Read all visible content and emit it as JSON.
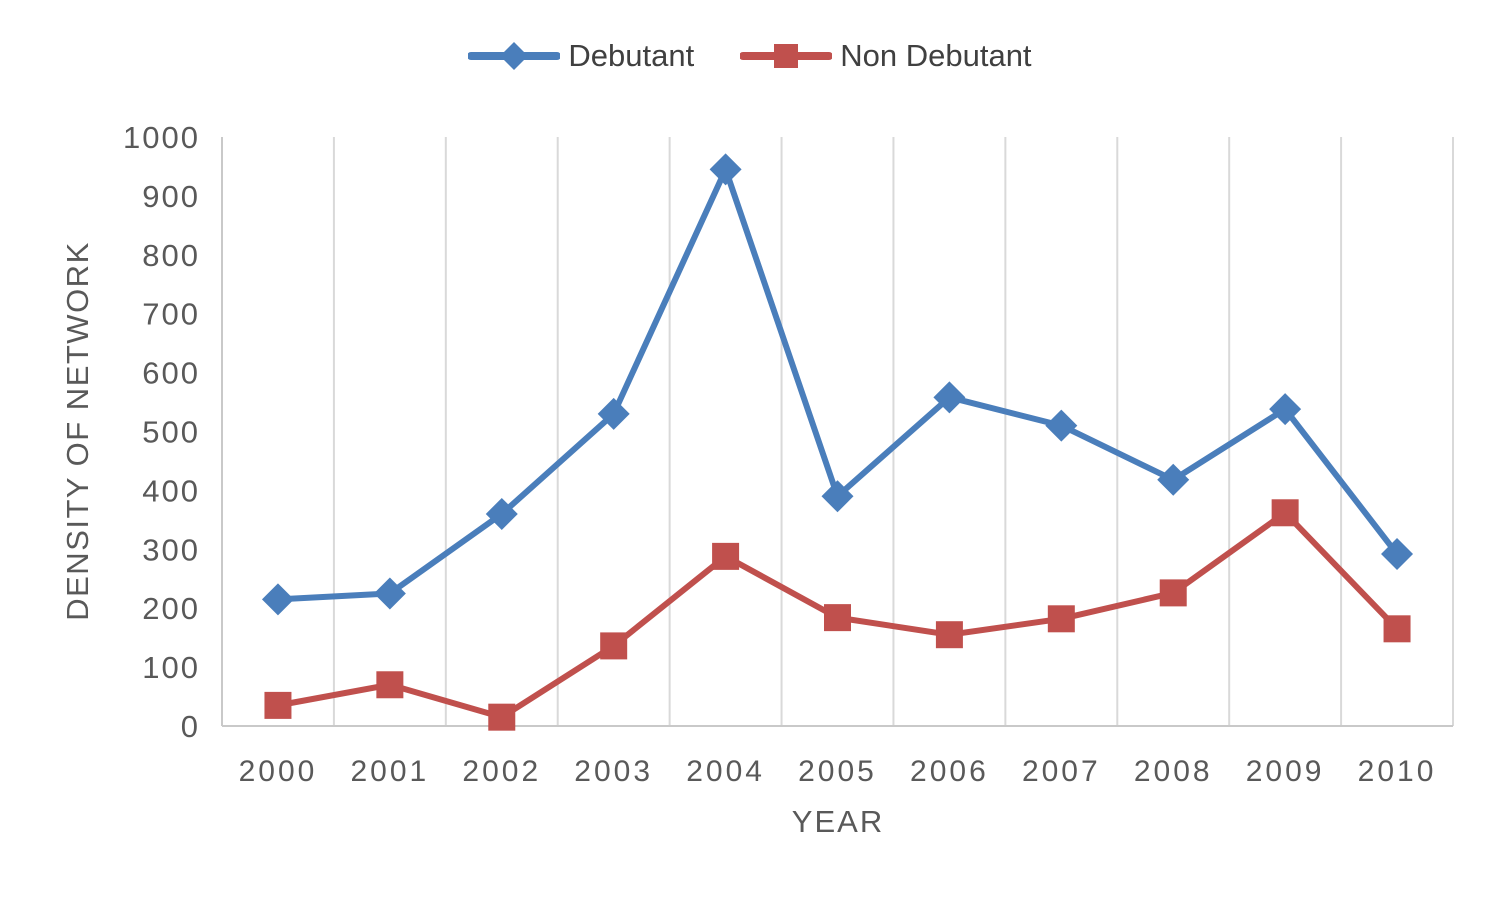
{
  "chart_data": {
    "type": "line",
    "title": "",
    "xlabel": "YEAR",
    "ylabel": "DENSITY OF NETWORK",
    "categories": [
      "2000",
      "2001",
      "2002",
      "2003",
      "2004",
      "2005",
      "2006",
      "2007",
      "2008",
      "2009",
      "2010"
    ],
    "series": [
      {
        "name": "Debutant",
        "color": "#4a7ebb",
        "marker": "diamond",
        "values": [
          215,
          225,
          360,
          530,
          945,
          390,
          558,
          510,
          418,
          538,
          292
        ]
      },
      {
        "name": "Non Debutant",
        "color": "#c0504d",
        "marker": "square",
        "values": [
          35,
          70,
          15,
          136,
          288,
          184,
          155,
          182,
          226,
          362,
          165
        ]
      }
    ],
    "ylim": [
      0,
      1000
    ],
    "yticks": [
      0,
      100,
      200,
      300,
      400,
      500,
      600,
      700,
      800,
      900,
      1000
    ],
    "grid": "vertical",
    "legend_position": "top",
    "colors": {
      "gridline": "#d9d9d9",
      "axis_line": "#c9c9c9",
      "tick_text": "#595959",
      "legend_text": "#404040"
    }
  }
}
